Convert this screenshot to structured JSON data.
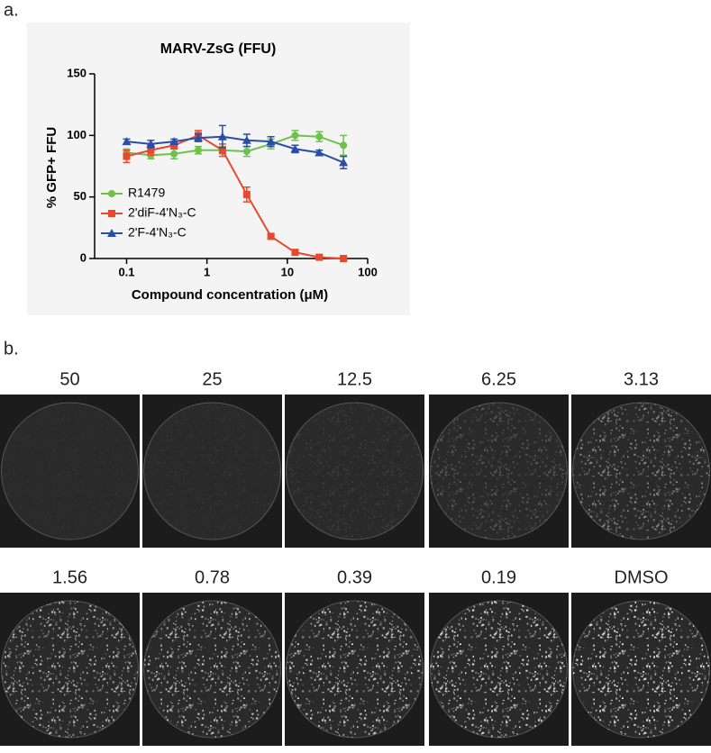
{
  "panel_labels": [
    "a.",
    "b."
  ],
  "chart_data": {
    "type": "line",
    "title": "MARV-ZsG (FFU)",
    "x_label": "Compound concentration (μM)",
    "y_label": "% GFP+ FFU",
    "x": [
      0.1,
      0.2,
      0.39,
      0.78,
      1.56,
      3.13,
      6.25,
      12.5,
      25,
      50
    ],
    "xscale": "log",
    "xlim": [
      0.04,
      100
    ],
    "xticks": [
      0.1,
      1,
      10,
      100
    ],
    "ylim": [
      0,
      150
    ],
    "yticks": [
      0,
      50,
      100,
      150
    ],
    "legend": "lower-left",
    "series": [
      {
        "name": "R1479",
        "color": "#6cc24a",
        "marker": "circle",
        "values": [
          86,
          84,
          85,
          88,
          88,
          87,
          93,
          100,
          99,
          92
        ],
        "errors": [
          3,
          3,
          4,
          3,
          3,
          4,
          4,
          4,
          4,
          8
        ]
      },
      {
        "name": "2'diF-4'N₃-C",
        "color": "#e8482c",
        "marker": "square",
        "values": [
          83,
          88,
          92,
          100,
          88,
          52,
          18,
          5,
          1,
          0
        ],
        "errors": [
          5,
          4,
          3,
          4,
          5,
          6,
          2,
          1,
          1,
          0
        ]
      },
      {
        "name": "2'F-4'N₃-C",
        "color": "#2a4ea6",
        "marker": "triangle",
        "values": [
          95,
          93,
          95,
          98,
          99,
          96,
          95,
          89,
          86,
          78
        ],
        "errors": [
          2,
          3,
          2,
          3,
          9,
          5,
          4,
          3,
          2,
          5
        ]
      }
    ]
  },
  "images": {
    "labels": [
      "50",
      "25",
      "12.5",
      "6.25",
      "3.13",
      "1.56",
      "0.78",
      "0.39",
      "0.19",
      "DMSO"
    ]
  }
}
